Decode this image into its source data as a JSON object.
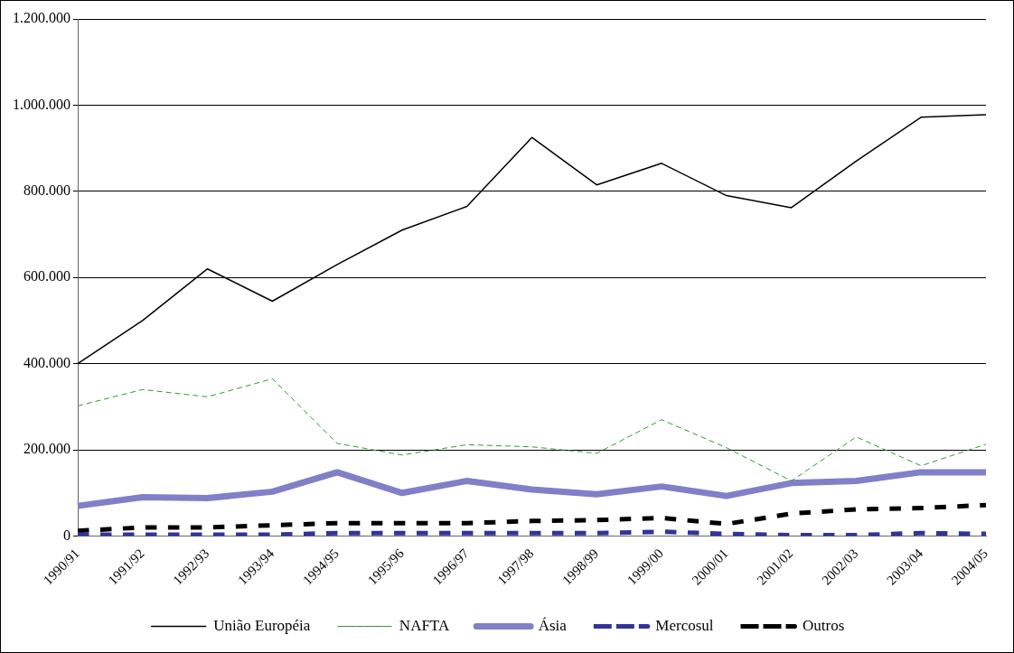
{
  "chart_data": {
    "type": "line",
    "categories": [
      "1990/91",
      "1991/92",
      "1992/93",
      "1993/94",
      "1994/95",
      "1995/96",
      "1996/97",
      "1997/98",
      "1998/99",
      "1999/00",
      "2000/01",
      "2001/02",
      "2002/03",
      "2003/04",
      "2004/05"
    ],
    "series": [
      {
        "name": "União Européia",
        "color": "#000000",
        "line_style": "solid",
        "values": [
          400000,
          500000,
          620000,
          545000,
          630000,
          710000,
          765000,
          925000,
          815000,
          865000,
          790000,
          762000,
          870000,
          972000,
          978000
        ]
      },
      {
        "name": "NAFTA",
        "color": "#339933",
        "line_style": "dashed",
        "values": [
          302000,
          340000,
          323000,
          365000,
          215000,
          188000,
          212000,
          207000,
          192000,
          270000,
          205000,
          128000,
          230000,
          163000,
          213000
        ]
      },
      {
        "name": "Ásia",
        "color": "#8080c8",
        "line_style": "solid",
        "values": [
          70000,
          90000,
          88000,
          103000,
          148000,
          100000,
          128000,
          108000,
          97000,
          115000,
          93000,
          123000,
          128000,
          148000,
          148000
        ]
      },
      {
        "name": "Mercosul",
        "color": "#333399",
        "line_style": "dashed",
        "values": [
          3000,
          3000,
          3000,
          3000,
          7000,
          7000,
          7000,
          7000,
          7000,
          10000,
          5000,
          2000,
          2000,
          7000,
          5000
        ]
      },
      {
        "name": "Outros",
        "color": "#000000",
        "line_style": "dashed",
        "values": [
          12000,
          20000,
          20000,
          25000,
          30000,
          30000,
          30000,
          35000,
          37000,
          42000,
          28000,
          52000,
          62000,
          65000,
          72000
        ]
      }
    ],
    "ylim": [
      0,
      1200000
    ],
    "yticks": [
      0,
      {
        "value": 200000,
        "label": "200.000"
      },
      {
        "value": 400000,
        "label": "400.000"
      },
      {
        "value": 600000,
        "label": "600.000"
      },
      {
        "value": 800000,
        "label": "800.000"
      },
      {
        "value": 1000000,
        "label": "1.000.000"
      },
      {
        "value": 1200000,
        "label": "1.200.000"
      }
    ],
    "grid": "y",
    "legend": "bottom",
    "marker": "none"
  }
}
